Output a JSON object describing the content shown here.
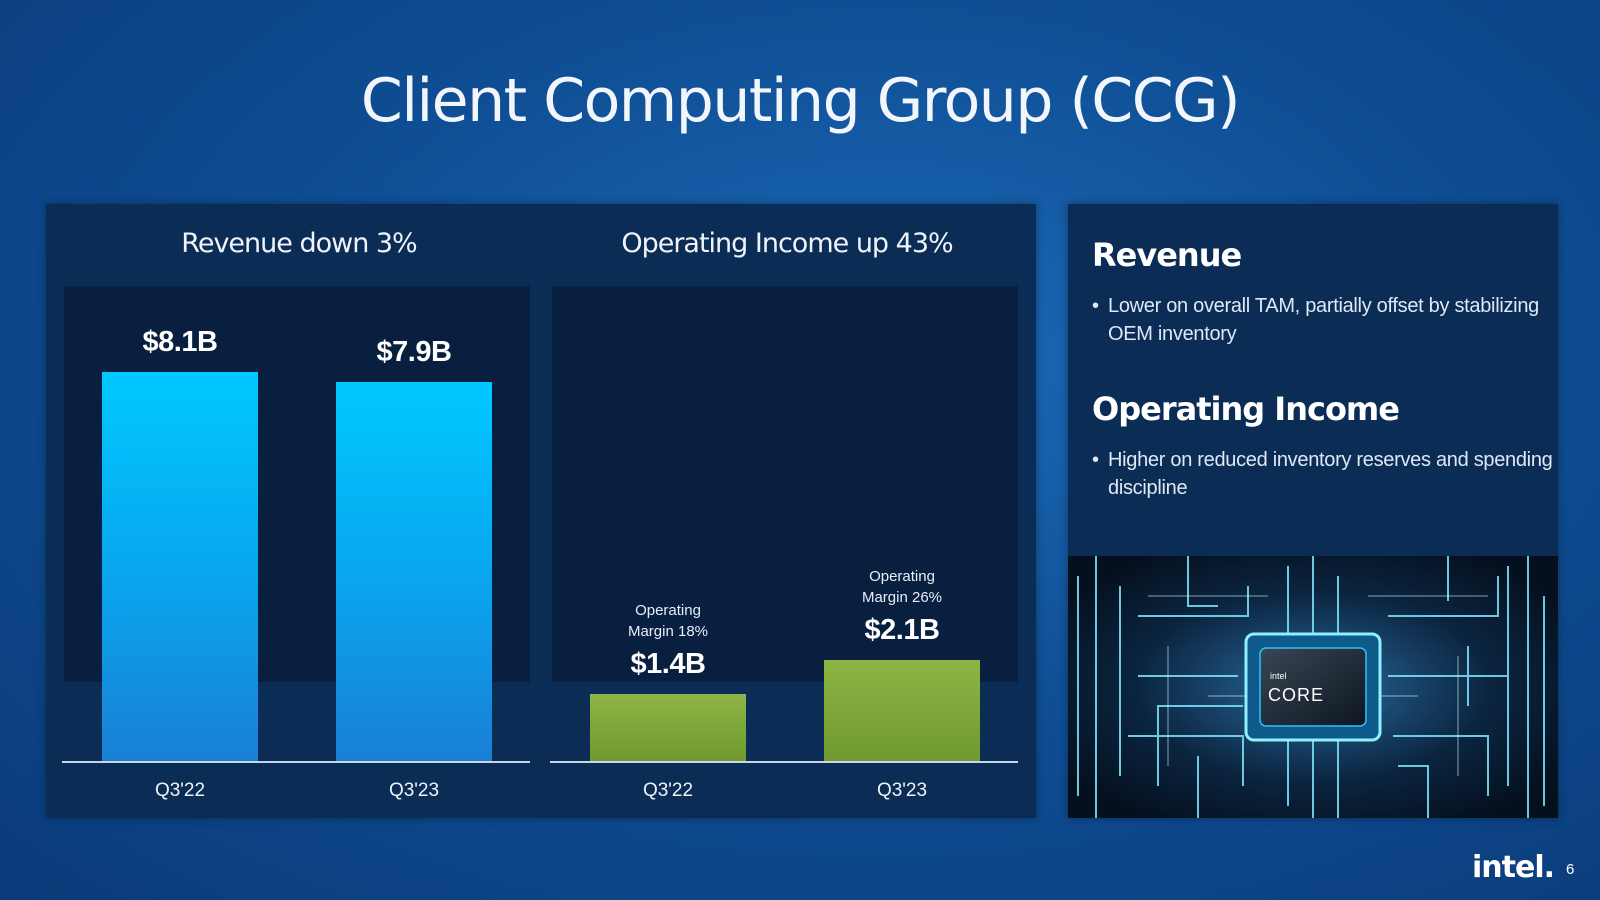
{
  "slide": {
    "title": "Client Computing Group (CCG)",
    "page_number": "6",
    "logo_text": "intel."
  },
  "chart_data": [
    {
      "type": "bar",
      "title": "Revenue down 3%",
      "categories": [
        "Q3'22",
        "Q3'23"
      ],
      "values": [
        8.1,
        7.9
      ],
      "value_labels": [
        "$8.1B",
        "$7.9B"
      ],
      "unit": "$B",
      "ylim": [
        0,
        8.1
      ],
      "grid": false,
      "color": "#0ab4f2"
    },
    {
      "type": "bar",
      "title": "Operating Income up 43%",
      "categories": [
        "Q3'22",
        "Q3'23"
      ],
      "values": [
        1.4,
        2.1
      ],
      "value_labels": [
        "$1.4B",
        "$2.1B"
      ],
      "annotations": [
        "Operating\nMargin 18%",
        "Operating\nMargin 26%"
      ],
      "unit": "$B",
      "ylim": [
        0,
        8.1
      ],
      "grid": false,
      "color": "#7ea63a"
    }
  ],
  "sidebar": {
    "revenue": {
      "heading": "Revenue",
      "bullet": "Lower on overall TAM, partially offset by stabilizing OEM inventory"
    },
    "operating_income": {
      "heading": "Operating Income",
      "bullet": "Higher on reduced inventory reserves and spending discipline"
    },
    "image_badge": {
      "small": "intel",
      "large": "CORE"
    }
  }
}
